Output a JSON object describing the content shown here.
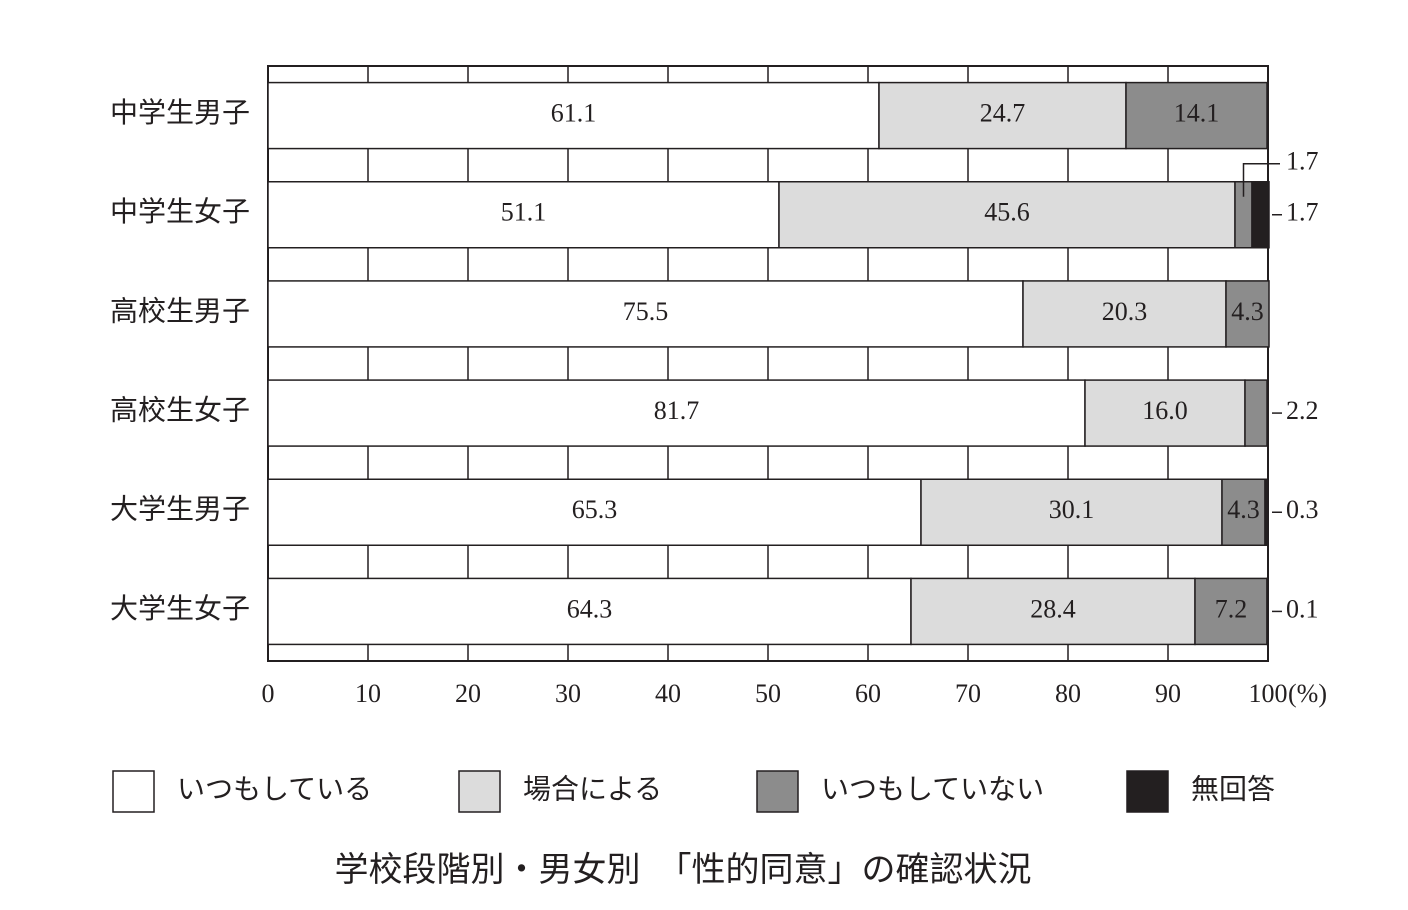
{
  "chart_data": {
    "type": "stacked-bar-horizontal",
    "title": "学校段階別・男女別　「性的同意」の確認状況",
    "categories": [
      "中学生男子",
      "中学生女子",
      "高校生男子",
      "高校生女子",
      "大学生男子",
      "大学生女子"
    ],
    "series": [
      {
        "name": "いつもしている",
        "color": "#ffffff",
        "values": [
          61.1,
          51.1,
          75.5,
          81.7,
          65.3,
          64.3
        ]
      },
      {
        "name": "場合による",
        "color": "#dcdcdc",
        "values": [
          24.7,
          45.6,
          20.3,
          16.0,
          30.1,
          28.4
        ],
        "value_labels": [
          "24.7",
          "45.6",
          "20.3",
          "16.0",
          "30.1",
          "28.4"
        ]
      },
      {
        "name": "いつもしていない",
        "color": "#8c8c8c",
        "values": [
          14.1,
          1.7,
          4.3,
          2.2,
          4.3,
          7.2
        ]
      },
      {
        "name": "無回答",
        "color": "#231f20",
        "values": [
          null,
          1.7,
          null,
          null,
          0.3,
          0.1
        ]
      }
    ],
    "xlim": [
      0,
      100
    ],
    "xticks": [
      0,
      10,
      20,
      30,
      40,
      50,
      60,
      70,
      80,
      90,
      100
    ],
    "x_unit": "(%)",
    "grid": true,
    "legend": "bottom"
  }
}
